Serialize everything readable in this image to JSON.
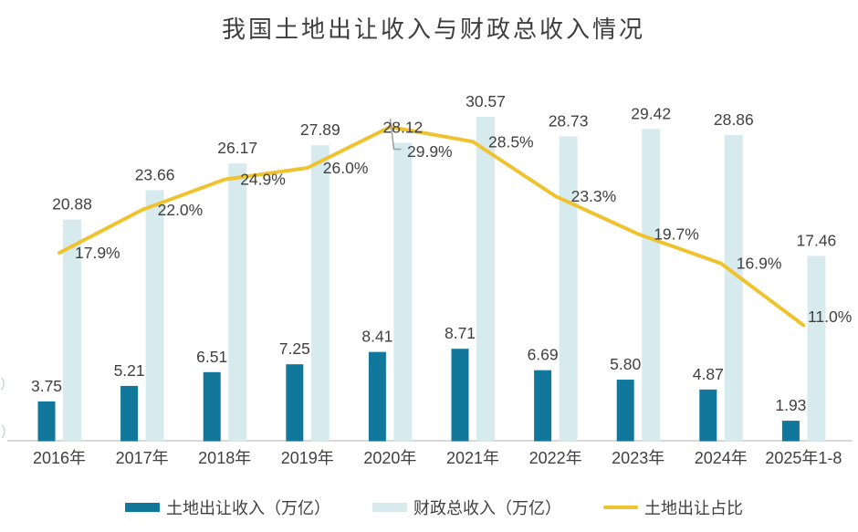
{
  "title": "我国土地出让收入与财政总收入情况",
  "chart_data": {
    "type": "combo",
    "title": "我国土地出让收入与财政总收入情况",
    "categories": [
      "2016年",
      "2017年",
      "2018年",
      "2019年",
      "2020年",
      "2021年",
      "2022年",
      "2023年",
      "2024年",
      "2025年1-8"
    ],
    "series": [
      {
        "name": "土地出让收入（万亿）",
        "type": "bar",
        "color": "#11789B",
        "values": [
          3.75,
          5.21,
          6.51,
          7.25,
          8.41,
          8.71,
          6.69,
          5.8,
          4.87,
          1.93
        ],
        "labels": [
          "3.75",
          "5.21",
          "6.51",
          "7.25",
          "8.41",
          "8.71",
          "6.69",
          "5.80",
          "4.87",
          "1.93"
        ]
      },
      {
        "name": "财政总收入（万亿）",
        "type": "bar",
        "color": "#D7EBEE",
        "values": [
          20.88,
          23.66,
          26.17,
          27.89,
          28.12,
          30.57,
          28.73,
          29.42,
          28.86,
          17.46
        ],
        "labels": [
          "20.88",
          "23.66",
          "26.17",
          "27.89",
          "28.12",
          "30.57",
          "28.73",
          "29.42",
          "28.86",
          "17.46"
        ]
      },
      {
        "name": "土地出让占比",
        "type": "line",
        "axis": "right",
        "color": "#EFC32F",
        "values": [
          17.9,
          22.0,
          24.9,
          26.0,
          29.9,
          28.5,
          23.3,
          19.7,
          16.9,
          11.0
        ],
        "labels": [
          "17.9%",
          "22.0%",
          "24.9%",
          "26.0%",
          "29.9%",
          "28.5%",
          "23.3%",
          "19.7%",
          "16.9%",
          "11.0%"
        ]
      }
    ],
    "left_axis": {
      "min": 0,
      "hidden": true
    },
    "right_axis": {
      "min": 0,
      "unit": "%",
      "hidden": true
    },
    "grid": false,
    "legend_position": "bottom",
    "baseline_color": "#D9D9D9",
    "label_color": "#404040",
    "leader_line_color": "#A0A0A0",
    "annotation": "29.9% label connected to 2020 line peak by leader line"
  }
}
